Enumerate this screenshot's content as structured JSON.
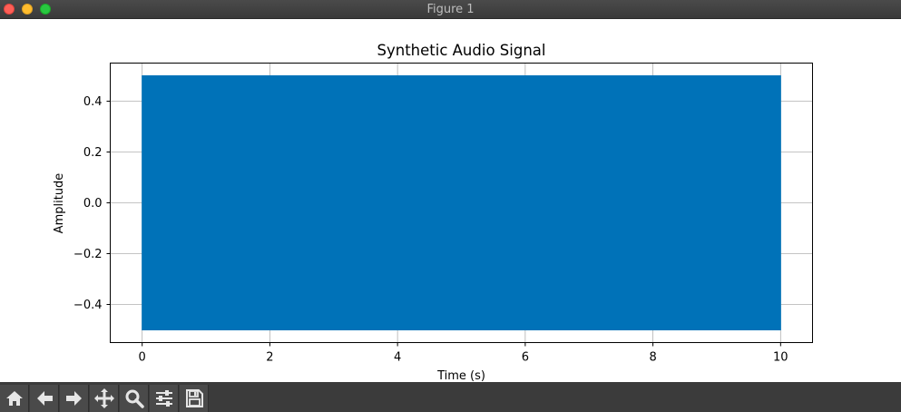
{
  "window": {
    "title": "Figure 1"
  },
  "toolbar": {
    "buttons": [
      {
        "icon": "home-icon"
      },
      {
        "icon": "back-arrow-icon"
      },
      {
        "icon": "forward-arrow-icon"
      },
      {
        "icon": "pan-icon"
      },
      {
        "icon": "zoom-icon"
      },
      {
        "icon": "configure-subplots-icon"
      },
      {
        "icon": "save-icon"
      }
    ]
  },
  "colors": {
    "signal": "#0072b8",
    "titlebar": "#3e3e3e",
    "toolbar": "#3b3b3b"
  },
  "chart_data": {
    "type": "line",
    "title": "Synthetic Audio Signal",
    "xlabel": "Time (s)",
    "ylabel": "Amplitude",
    "xlim": [
      -0.5,
      10.5
    ],
    "ylim": [
      -0.55,
      0.55
    ],
    "xticks": [
      0,
      2,
      4,
      6,
      8,
      10
    ],
    "xtick_labels": [
      "0",
      "2",
      "4",
      "6",
      "8",
      "10"
    ],
    "yticks": [
      -0.4,
      -0.2,
      0.0,
      0.2,
      0.4
    ],
    "ytick_labels": [
      "−0.4",
      "−0.2",
      "0.0",
      "0.2",
      "0.4"
    ],
    "grid": true,
    "series": [
      {
        "x_range": [
          0,
          10
        ],
        "y_min": -0.5,
        "y_max": 0.5,
        "color": "#0072b8"
      }
    ]
  }
}
